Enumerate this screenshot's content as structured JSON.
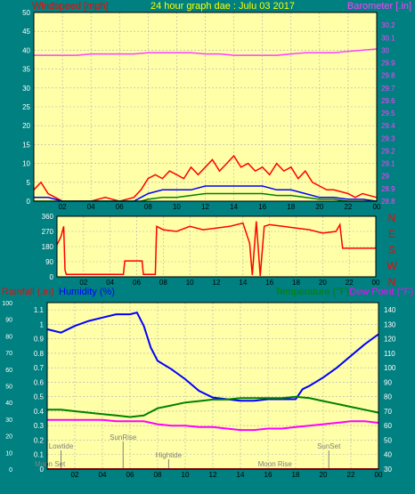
{
  "colors": {
    "background": "#008080",
    "plot_bg": "#ffffa8",
    "grid": "#b0b0b0",
    "wind_gust": "#ff0000",
    "wind_avg": "#0000ff",
    "wind_low": "#008000",
    "barometer": "#ff40ff",
    "direction": "#ff0000",
    "rain": "#ff0000",
    "humidity": "#0000ff",
    "temperature": "#008000",
    "dewpoint": "#ff00ff"
  },
  "chart_data": [
    {
      "type": "line",
      "title": "24 hour graph dae : Julu 03 2017",
      "ylabel_left": "Windspeed [mph]",
      "ylabel_right": "Barometer [.in]",
      "x_ticks": [
        "02",
        "04",
        "06",
        "08",
        "10",
        "12",
        "14",
        "16",
        "18",
        "20",
        "22",
        "00"
      ],
      "xlim": [
        0,
        24
      ],
      "ylim_left": [
        0,
        50
      ],
      "yticks_left": [
        0,
        5,
        10,
        15,
        20,
        25,
        30,
        35,
        40,
        45,
        50
      ],
      "ylim_right": [
        28.8,
        30.3
      ],
      "yticks_right": [
        28.8,
        28.9,
        29.0,
        29.1,
        29.2,
        29.3,
        29.4,
        29.5,
        29.6,
        29.7,
        29.8,
        29.9,
        30.0,
        30.1,
        30.2
      ],
      "ytick_labels_right": [
        "28.8",
        "28.9",
        "29",
        "29.1",
        "29.2",
        "29.3",
        "29.4",
        "29.5",
        "29.6",
        "29.7",
        "29.8",
        "29.9",
        "30",
        "30.1",
        "30.2"
      ],
      "series": [
        {
          "name": "Barometer",
          "axis": "right",
          "x": [
            0,
            1,
            2,
            3,
            4,
            5,
            6,
            7,
            8,
            9,
            10,
            11,
            12,
            13,
            14,
            15,
            16,
            17,
            18,
            19,
            20,
            21,
            22,
            23,
            24
          ],
          "values": [
            29.96,
            29.96,
            29.96,
            29.96,
            29.97,
            29.97,
            29.97,
            29.97,
            29.98,
            29.98,
            29.98,
            29.98,
            29.97,
            29.97,
            29.96,
            29.96,
            29.96,
            29.96,
            29.97,
            29.98,
            29.98,
            29.98,
            29.99,
            30.0,
            30.01
          ]
        },
        {
          "name": "Wind Gust",
          "axis": "left",
          "x": [
            0,
            0.5,
            1,
            1.5,
            2,
            3,
            4,
            5,
            6,
            7,
            7.5,
            8,
            8.5,
            9,
            9.5,
            10,
            10.5,
            11,
            11.5,
            12,
            12.5,
            13,
            13.5,
            14,
            14.5,
            15,
            15.5,
            16,
            16.5,
            17,
            17.5,
            18,
            18.5,
            19,
            19.5,
            20,
            20.5,
            21,
            22,
            22.5,
            23,
            24
          ],
          "values": [
            3,
            5,
            2,
            1,
            0,
            0,
            0,
            1,
            0,
            1,
            3,
            6,
            7,
            6,
            8,
            7,
            6,
            9,
            7,
            9,
            11,
            8,
            10,
            12,
            9,
            10,
            8,
            9,
            7,
            10,
            8,
            9,
            6,
            8,
            5,
            4,
            3,
            3,
            2,
            1,
            2,
            1
          ]
        },
        {
          "name": "Wind Average",
          "axis": "left",
          "x": [
            0,
            1,
            2,
            4,
            6,
            7,
            7.5,
            8,
            9,
            10,
            11,
            12,
            13,
            14,
            15,
            16,
            17,
            18,
            19,
            20,
            21,
            22,
            23,
            24
          ],
          "values": [
            1,
            1,
            0,
            0,
            0,
            0,
            1,
            2,
            3,
            3,
            3,
            4,
            4,
            4,
            4,
            4,
            3,
            3,
            2,
            1,
            1,
            0.5,
            0.5,
            0
          ]
        },
        {
          "name": "Wind Low",
          "axis": "left",
          "x": [
            0,
            2,
            4,
            6,
            7.5,
            8,
            9,
            10,
            11,
            12,
            13,
            14,
            15,
            16,
            17,
            18,
            19,
            20,
            21,
            22,
            24
          ],
          "values": [
            0,
            0,
            0,
            0,
            0,
            0.5,
            1,
            1,
            1.5,
            2,
            2,
            2,
            2,
            2,
            1.5,
            1.5,
            1,
            0.5,
            0.5,
            0,
            0
          ]
        }
      ]
    },
    {
      "type": "line",
      "ylim": [
        0,
        360
      ],
      "yticks": [
        0,
        90,
        180,
        270,
        360
      ],
      "right_labels": [
        "N",
        "W",
        "S",
        "E",
        "N"
      ],
      "x_ticks": [
        "02",
        "04",
        "06",
        "08",
        "10",
        "12",
        "14",
        "16",
        "18",
        "20",
        "22",
        "00"
      ],
      "xlim": [
        0,
        24
      ],
      "series": [
        {
          "name": "Wind Direction",
          "x": [
            0,
            0.3,
            0.5,
            0.6,
            0.7,
            5,
            5.1,
            6.4,
            6.5,
            7.4,
            7.5,
            8,
            9,
            10,
            11,
            12,
            13,
            14,
            14.5,
            14.7,
            15,
            15.3,
            15.6,
            16,
            17,
            18,
            19,
            20,
            21,
            21.3,
            21.5,
            22,
            24
          ],
          "values": [
            190,
            240,
            300,
            40,
            15,
            15,
            95,
            95,
            15,
            15,
            300,
            280,
            270,
            300,
            280,
            290,
            300,
            320,
            200,
            10,
            330,
            5,
            300,
            310,
            300,
            290,
            280,
            260,
            270,
            310,
            170,
            170,
            170
          ]
        }
      ]
    },
    {
      "type": "line",
      "ylabel_left": "Rainfall (.in)",
      "ylabel_left2": "Humidity (%)",
      "ylabel_right": "Temperature (°F)",
      "ylabel_right2": "Dew Point (°F)",
      "x_ticks": [
        "02",
        "04",
        "06",
        "08",
        "10",
        "12",
        "14",
        "16",
        "18",
        "20",
        "22",
        "00"
      ],
      "xlim": [
        0,
        24
      ],
      "ylim_rain": [
        0,
        1.15
      ],
      "yticks_rain": [
        0,
        0.1,
        0.2,
        0.3,
        0.4,
        0.5,
        0.6,
        0.7,
        0.8,
        0.9,
        1,
        1.1
      ],
      "ytick_labels_rain": [
        "0",
        "0.1",
        "0.2",
        "0.3",
        "0.4",
        "0.5",
        "0.6",
        "0.7",
        "0.8",
        "0.9",
        "1",
        "1.1"
      ],
      "ylim_humidity": [
        0,
        100
      ],
      "yticks_humidity": [
        0,
        10,
        20,
        30,
        40,
        50,
        60,
        70,
        80,
        90,
        100
      ],
      "ylim_temp": [
        30,
        145
      ],
      "yticks_temp": [
        30,
        40,
        50,
        60,
        70,
        80,
        90,
        100,
        110,
        120,
        130,
        140
      ],
      "series": [
        {
          "name": "Humidity",
          "axis": "humidity",
          "x": [
            0,
            1,
            2,
            3,
            4,
            5,
            6,
            6.5,
            7,
            7.5,
            8,
            9,
            10,
            11,
            12,
            13,
            14,
            15,
            16,
            17,
            18,
            18.5,
            19,
            20,
            21,
            22,
            23,
            24
          ],
          "values": [
            84,
            82,
            86,
            89,
            91,
            93,
            93,
            94,
            86,
            73,
            65,
            60,
            54,
            47,
            43,
            42,
            41,
            41,
            42,
            42,
            42,
            48,
            50,
            55,
            61,
            68,
            75,
            81
          ]
        },
        {
          "name": "Temperature",
          "axis": "temp",
          "x": [
            0,
            1,
            2,
            3,
            4,
            5,
            6,
            7,
            8,
            9,
            10,
            11,
            12,
            13,
            14,
            15,
            16,
            17,
            18,
            19,
            20,
            21,
            22,
            23,
            24
          ],
          "values": [
            71,
            71,
            70,
            69,
            68,
            67,
            66,
            67,
            72,
            74,
            76,
            77,
            78,
            78,
            79,
            79,
            79,
            79,
            80,
            79,
            77,
            75,
            73,
            71,
            69
          ]
        },
        {
          "name": "Dew Point",
          "axis": "temp",
          "x": [
            0,
            1,
            2,
            3,
            4,
            5,
            6,
            7,
            8,
            9,
            10,
            11,
            12,
            13,
            14,
            15,
            16,
            17,
            18,
            19,
            20,
            21,
            22,
            23,
            24
          ],
          "values": [
            64,
            64,
            64,
            64,
            64,
            63,
            63,
            63,
            61,
            60,
            60,
            59,
            59,
            58,
            57,
            57,
            58,
            58,
            59,
            60,
            61,
            62,
            63,
            63,
            62
          ]
        },
        {
          "name": "Rainfall",
          "axis": "rain",
          "x": [
            0,
            24
          ],
          "values": [
            0,
            0
          ]
        }
      ],
      "annotations": [
        {
          "label": "Moon Set",
          "x": 0.2,
          "row": 0
        },
        {
          "label": "Lowtide",
          "x": 1.0,
          "row": 2
        },
        {
          "label": "SunRise",
          "x": 5.5,
          "row": 3
        },
        {
          "label": "Hightide",
          "x": 8.8,
          "row": 1
        },
        {
          "label": "Moon Rise",
          "x": 16.5,
          "row": 0
        },
        {
          "label": "SunSet",
          "x": 20.4,
          "row": 2
        }
      ]
    }
  ]
}
